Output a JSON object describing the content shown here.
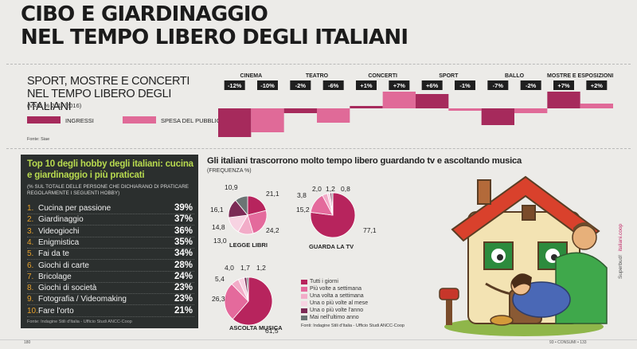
{
  "header": {
    "title_line1": "CIBO E GIARDINAGGIO",
    "title_line2": "NEL TEMPO LIBERO DEGLI ITALIANI"
  },
  "sport_section": {
    "title_line1": "SPORT, MOSTRE E CONCERTI",
    "title_line2": "NEL TEMPO LIBERO DEGLI ITALIANI",
    "note": "(VAR. % 2017/2016)",
    "legend_ingressi": "INGRESSI",
    "legend_spesa": "SPESA DEL PUBBLICO",
    "source": "Fonte: Siae"
  },
  "top10": {
    "title": "Top 10 degli hobby degli italiani: cucina e giardinaggio i più praticati",
    "subtitle": "(% SUL TOTALE DELLE PERSONE CHE DICHIARANO DI PRATICARE REGOLARMENTE I SEGUENTI HOBBY)",
    "items": [
      {
        "num": "1.",
        "label": "Cucina per passione",
        "value": "39%"
      },
      {
        "num": "2.",
        "label": "Giardinaggio",
        "value": "37%"
      },
      {
        "num": "3.",
        "label": "Videogiochi",
        "value": "36%"
      },
      {
        "num": "4.",
        "label": "Enigmistica",
        "value": "35%"
      },
      {
        "num": "5.",
        "label": "Fai da te",
        "value": "34%"
      },
      {
        "num": "6.",
        "label": "Giochi di carte",
        "value": "28%"
      },
      {
        "num": "7.",
        "label": "Bricolage",
        "value": "24%"
      },
      {
        "num": "8.",
        "label": "Giochi di società",
        "value": "23%"
      },
      {
        "num": "9.",
        "label": "Fotografia / Videomaking",
        "value": "23%"
      },
      {
        "num": "10.",
        "label": "Fare l'orto",
        "value": "21%"
      }
    ],
    "source": "Fonte: Indagine Stili d'Italia - Ufficio Studi ANCC-Coop"
  },
  "pies_section": {
    "title": "Gli italiani trascorrono molto tempo libero guardando tv e ascoltando musica",
    "subtitle": "(FREQUENZA %)",
    "legend": [
      {
        "label": "Tutti i giorni",
        "color": "#b7245d"
      },
      {
        "label": "Più volte a settimana",
        "color": "#e46a9c"
      },
      {
        "label": "Una volta a settimana",
        "color": "#f2acc8"
      },
      {
        "label": "Una o più volte al mese",
        "color": "#f7d3e2"
      },
      {
        "label": "Una o più volte l'anno",
        "color": "#7b2a55"
      },
      {
        "label": "Mai nell'ultimo anno",
        "color": "#6b7574"
      }
    ],
    "source": "Fonti: Indagine Stili d'Italia - Ufficio Studi ANCC-Coop"
  },
  "footer": {
    "left": "180",
    "right": "93 • CONSUMI • 133",
    "side_a": "Superbud!",
    "side_b": "italiani.coop"
  },
  "chart_data": [
    {
      "type": "bar",
      "categories": [
        "CINEMA",
        "TEATRO",
        "CONCERTI",
        "SPORT",
        "BALLO",
        "MOSTRE E ESPOSIZIONI"
      ],
      "series": [
        {
          "name": "INGRESSI",
          "values": [
            -12,
            -2,
            1,
            6,
            -7,
            7
          ],
          "labels": [
            "-12%",
            "-2%",
            "+1%",
            "+6%",
            "-7%",
            "+7%"
          ],
          "color": "#a62a5c"
        },
        {
          "name": "SPESA DEL PUBBLICO",
          "values": [
            -10,
            -6,
            7,
            -1,
            -2,
            2
          ],
          "labels": [
            "-10%",
            "-6%",
            "+7%",
            "-1%",
            "-2%",
            "+2%"
          ],
          "color": "#e06a98"
        }
      ],
      "title": "SPORT, MOSTRE E CONCERTI NEL TEMPO LIBERO DEGLI ITALIANI",
      "grid": false,
      "legend": "left"
    },
    {
      "type": "pie",
      "title": "LEGGE LIBRI",
      "labels": [
        "Tutti i giorni",
        "Più volte a settimana",
        "Una volta a settimana",
        "Una o più volte al mese",
        "Una o più volte l'anno",
        "Mai nell'ultimo anno"
      ],
      "values": [
        21.1,
        24.2,
        13.0,
        14.8,
        16.1,
        10.9
      ],
      "value_labels": [
        "21,1",
        "24,2",
        "13,0",
        "14,8",
        "16,1",
        "10,9"
      ]
    },
    {
      "type": "pie",
      "title": "GUARDA LA TV",
      "labels": [
        "Tutti i giorni",
        "Più volte a settimana",
        "Una volta a settimana",
        "Una o più volte al mese",
        "Una o più volte l'anno",
        "Mai nell'ultimo anno"
      ],
      "values": [
        77.1,
        15.2,
        3.8,
        2.0,
        1.2,
        0.8
      ],
      "value_labels": [
        "77,1",
        "15,2",
        "3,8",
        "2,0",
        "1,2",
        "0,8"
      ]
    },
    {
      "type": "pie",
      "title": "ASCOLTA MUSICA",
      "labels": [
        "Tutti i giorni",
        "Più volte a settimana",
        "Una volta a settimana",
        "Una o più volte al mese",
        "Una o più volte l'anno",
        "Mai nell'ultimo anno"
      ],
      "values": [
        61.5,
        26.3,
        5.4,
        4.0,
        1.7,
        1.2
      ],
      "value_labels": [
        "61,5",
        "26,3",
        "5,4",
        "4,0",
        "1,7",
        "1,2"
      ]
    }
  ]
}
